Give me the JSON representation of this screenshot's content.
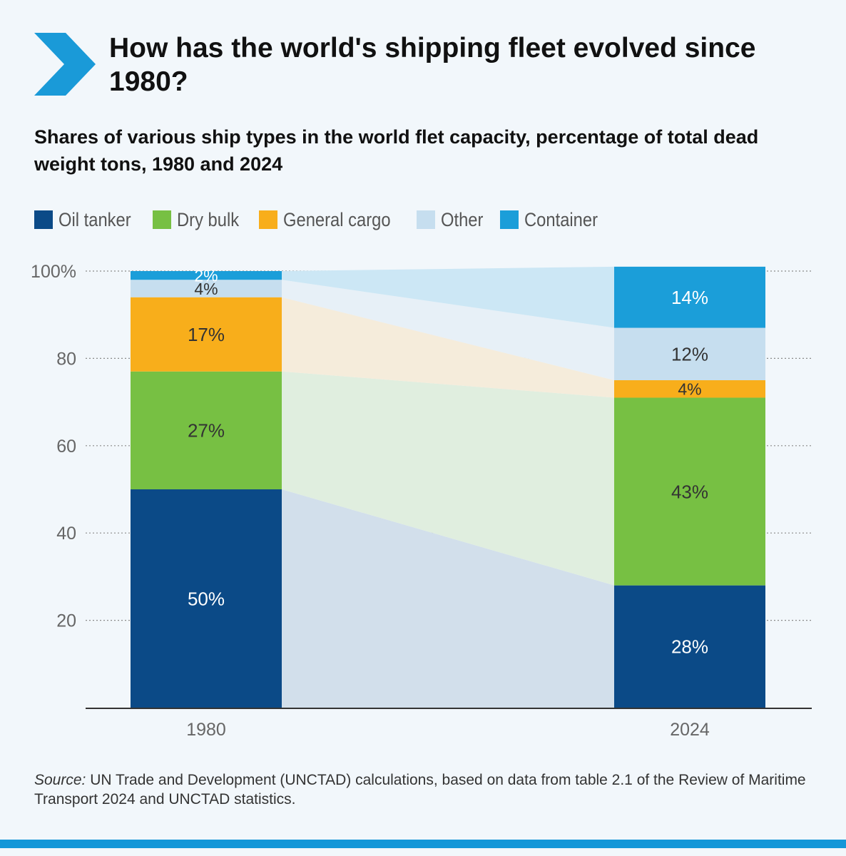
{
  "header": {
    "title": "How has the world's shipping fleet evolved since 1980?",
    "subtitle": "Shares of various ship types in the world flet capacity, percentage of total dead weight tons, 1980 and 2024"
  },
  "legend": {
    "items": [
      {
        "label": "Oil tanker",
        "color": "#0b4a87"
      },
      {
        "label": "Dry bulk",
        "color": "#77c043"
      },
      {
        "label": "General cargo",
        "color": "#f8ae1b"
      },
      {
        "label": "Other",
        "color": "#c6deef"
      },
      {
        "label": "Container",
        "color": "#1b9ed9"
      }
    ]
  },
  "chart_data": {
    "type": "bar",
    "stacked": true,
    "title": "Shares of various ship types in the world flet capacity, percentage of total dead weight tons, 1980 and 2024",
    "xlabel": "",
    "ylabel": "",
    "ylim": [
      0,
      100
    ],
    "yticks": [
      20,
      40,
      60,
      80,
      100
    ],
    "ytick_labels": [
      "20",
      "40",
      "60",
      "80",
      "100%"
    ],
    "categories": [
      "1980",
      "2024"
    ],
    "series": [
      {
        "name": "Oil tanker",
        "color": "#0b4a87",
        "flow_color": "#d2dfeb",
        "values": [
          50,
          28
        ],
        "labels": [
          "50%",
          "28%"
        ],
        "label_color": "#ffffff"
      },
      {
        "name": "Dry bulk",
        "color": "#77c043",
        "flow_color": "#e0eedf",
        "values": [
          27,
          43
        ],
        "labels": [
          "27%",
          "43%"
        ],
        "label_color": "#333333"
      },
      {
        "name": "General cargo",
        "color": "#f8ae1b",
        "flow_color": "#f5ecdb",
        "values": [
          17,
          4
        ],
        "labels": [
          "17%",
          "4%"
        ],
        "label_color": "#333333"
      },
      {
        "name": "Other",
        "color": "#c6deef",
        "flow_color": "#e7f0f7",
        "values": [
          4,
          12
        ],
        "labels": [
          "4%",
          "12%"
        ],
        "label_color": "#333333"
      },
      {
        "name": "Container",
        "color": "#1b9ed9",
        "flow_color": "#cce7f5",
        "values": [
          2,
          14
        ],
        "labels": [
          "2%",
          "14%"
        ],
        "label_color": "#ffffff"
      }
    ]
  },
  "source": {
    "label": "Source:",
    "text": "UN Trade and Development (UNCTAD) calculations, based on data from table 2.1 of the Review of Maritime Transport 2024 and UNCTAD statistics."
  },
  "colors": {
    "accent": "#1597d8",
    "background": "#f2f7fb"
  }
}
